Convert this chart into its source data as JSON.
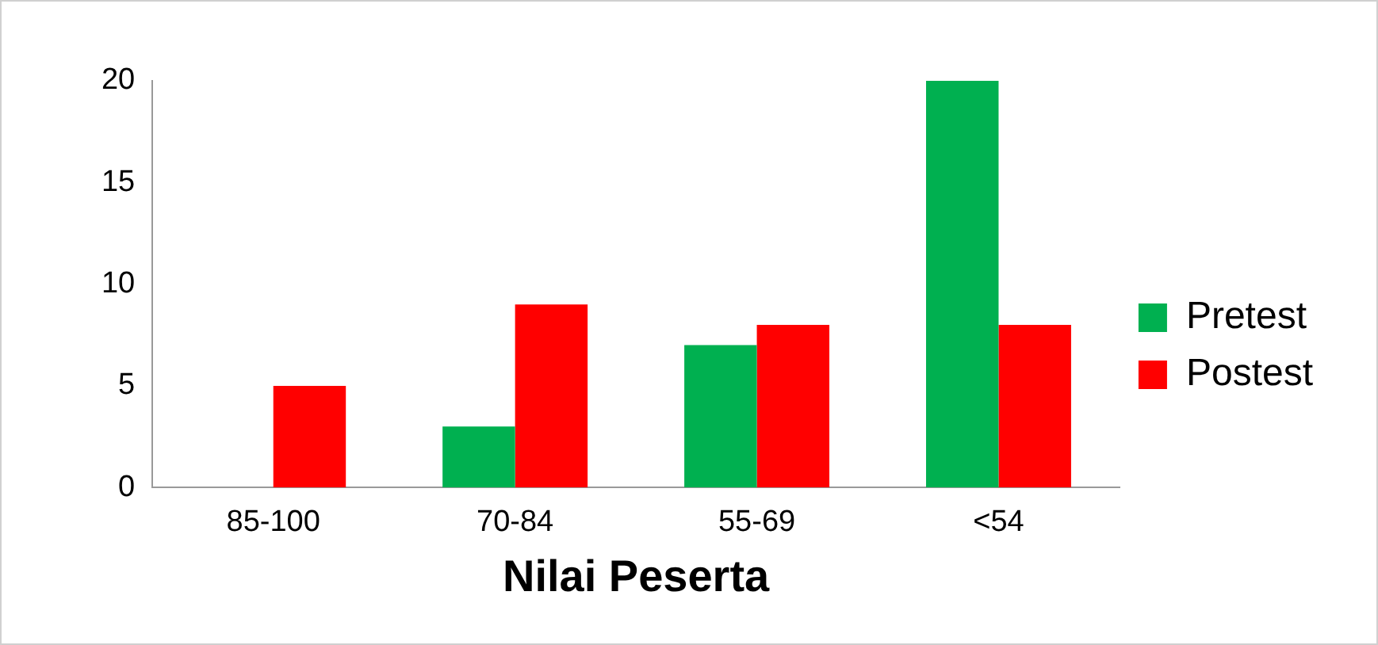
{
  "chart_data": {
    "type": "bar",
    "xlabel": "Nilai Peserta",
    "categories": [
      "85-100",
      "70-84",
      "55-69",
      "<54"
    ],
    "series": [
      {
        "name": "Pretest",
        "color": "#00b050",
        "values": [
          0,
          3,
          7,
          20
        ]
      },
      {
        "name": "Postest",
        "color": "#ff0000",
        "values": [
          5,
          9,
          8,
          8
        ]
      }
    ],
    "ylim": [
      0,
      20
    ],
    "yticks": [
      0,
      5,
      10,
      15,
      20
    ],
    "grid": false,
    "legend": "right"
  }
}
